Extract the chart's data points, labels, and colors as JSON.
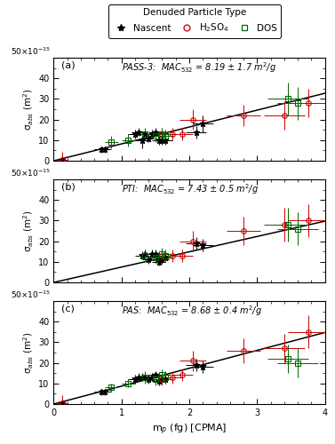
{
  "titles": [
    "PASS-3:  MAC$_{532}$ = 8.19 ± 1.7 m$^2$/g",
    "PTI:  MAC$_{532}$ = 7.43 ± 0.5 m$^2$/g",
    "PAS:  MAC$_{532}$ = 8.68 ± 0.4 m$^2$/g"
  ],
  "panel_labels": [
    "(a)",
    "(b)",
    "(c)"
  ],
  "xlabel": "m$_p$ (fg) [CPMA]",
  "ylabel": "σ$_{abs}$ (m$^2$)",
  "xlim": [
    0,
    4
  ],
  "ylim": [
    0,
    50
  ],
  "yticks": [
    0,
    10,
    20,
    30,
    40
  ],
  "xticks": [
    0,
    1,
    2,
    3,
    4
  ],
  "mac_vals": [
    8.19,
    7.43,
    8.68
  ],
  "nascent_color": "#000000",
  "h2so4_color": "#cc0000",
  "dos_color": "#006600",
  "panels": [
    {
      "nascent_x": [
        0.13,
        0.7,
        0.75,
        1.2,
        1.25,
        1.3,
        1.35,
        1.4,
        1.45,
        1.5,
        1.55,
        1.6,
        1.65,
        2.1,
        2.2
      ],
      "nascent_y": [
        0.5,
        5.5,
        5.5,
        13.0,
        14.0,
        10.0,
        13.0,
        11.0,
        13.0,
        14.0,
        10.0,
        10.0,
        10.0,
        14.0,
        18.0
      ],
      "nascent_xerr": [
        0.05,
        0.1,
        0.1,
        0.1,
        0.1,
        0.1,
        0.1,
        0.1,
        0.1,
        0.1,
        0.1,
        0.1,
        0.1,
        0.15,
        0.15
      ],
      "nascent_yerr": [
        3.0,
        1.5,
        1.5,
        2.0,
        2.0,
        4.0,
        2.0,
        2.0,
        2.0,
        2.0,
        2.0,
        2.0,
        2.0,
        3.0,
        4.0
      ],
      "h2so4_x": [
        0.13,
        1.6,
        1.75,
        1.9,
        2.05,
        2.8,
        3.4,
        3.75
      ],
      "h2so4_y": [
        0.5,
        13.0,
        13.0,
        13.0,
        20.0,
        22.0,
        22.0,
        28.0
      ],
      "h2so4_xerr": [
        0.07,
        0.15,
        0.15,
        0.15,
        0.2,
        0.25,
        0.3,
        0.3
      ],
      "h2so4_yerr": [
        4.0,
        3.0,
        3.0,
        3.0,
        5.0,
        5.0,
        7.0,
        7.0
      ],
      "dos_x": [
        0.85,
        1.1,
        1.35,
        1.5,
        1.6,
        1.65,
        3.45,
        3.6
      ],
      "dos_y": [
        9.0,
        10.0,
        13.0,
        12.0,
        13.0,
        12.0,
        30.0,
        28.0
      ],
      "dos_xerr": [
        0.1,
        0.1,
        0.1,
        0.12,
        0.12,
        0.12,
        0.3,
        0.3
      ],
      "dos_yerr": [
        3.0,
        3.0,
        3.0,
        3.0,
        3.0,
        3.0,
        8.0,
        8.0
      ]
    },
    {
      "nascent_x": [
        1.3,
        1.35,
        1.4,
        1.45,
        1.5,
        1.55,
        1.6,
        1.65,
        2.1,
        2.2
      ],
      "nascent_y": [
        13.0,
        14.0,
        11.0,
        14.0,
        14.0,
        10.0,
        11.0,
        12.0,
        19.0,
        18.0
      ],
      "nascent_xerr": [
        0.1,
        0.1,
        0.1,
        0.1,
        0.1,
        0.1,
        0.1,
        0.1,
        0.15,
        0.15
      ],
      "nascent_yerr": [
        2.0,
        2.0,
        2.0,
        2.0,
        2.0,
        2.0,
        2.0,
        2.0,
        3.0,
        3.0
      ],
      "h2so4_x": [
        1.6,
        1.75,
        1.9,
        2.05,
        2.8,
        3.4,
        3.75
      ],
      "h2so4_y": [
        13.0,
        13.0,
        13.0,
        20.0,
        25.0,
        28.0,
        30.0
      ],
      "h2so4_xerr": [
        0.15,
        0.15,
        0.15,
        0.2,
        0.25,
        0.3,
        0.3
      ],
      "h2so4_yerr": [
        3.0,
        3.0,
        3.0,
        5.0,
        7.0,
        8.0,
        8.0
      ],
      "dos_x": [
        1.35,
        1.5,
        1.6,
        1.65,
        3.45,
        3.6
      ],
      "dos_y": [
        13.0,
        12.0,
        14.0,
        13.0,
        28.0,
        26.0
      ],
      "dos_xerr": [
        0.1,
        0.12,
        0.12,
        0.12,
        0.3,
        0.3
      ],
      "dos_yerr": [
        3.0,
        3.0,
        3.0,
        3.0,
        8.0,
        8.0
      ]
    },
    {
      "nascent_x": [
        0.13,
        0.7,
        0.75,
        1.2,
        1.25,
        1.3,
        1.35,
        1.4,
        1.45,
        1.5,
        1.55,
        1.6,
        1.65,
        2.1,
        2.2
      ],
      "nascent_y": [
        0.5,
        6.0,
        6.0,
        12.0,
        13.0,
        13.0,
        13.0,
        12.0,
        13.0,
        14.0,
        11.0,
        12.0,
        12.0,
        19.0,
        18.0
      ],
      "nascent_xerr": [
        0.05,
        0.1,
        0.1,
        0.1,
        0.1,
        0.1,
        0.1,
        0.1,
        0.1,
        0.1,
        0.1,
        0.1,
        0.1,
        0.15,
        0.15
      ],
      "nascent_yerr": [
        1.0,
        1.5,
        1.5,
        2.0,
        2.0,
        2.0,
        2.0,
        2.0,
        2.0,
        2.0,
        2.0,
        2.0,
        2.0,
        3.0,
        3.0
      ],
      "h2so4_x": [
        0.13,
        1.6,
        1.75,
        1.9,
        2.05,
        2.8,
        3.4,
        3.75
      ],
      "h2so4_y": [
        0.5,
        12.0,
        13.0,
        14.0,
        21.0,
        26.0,
        27.0,
        35.0
      ],
      "h2so4_xerr": [
        0.07,
        0.15,
        0.15,
        0.15,
        0.2,
        0.25,
        0.3,
        0.3
      ],
      "h2so4_yerr": [
        4.0,
        3.0,
        3.0,
        3.0,
        5.0,
        6.0,
        7.0,
        8.0
      ],
      "dos_x": [
        0.85,
        1.1,
        1.35,
        1.5,
        1.6,
        1.65,
        3.45,
        3.6
      ],
      "dos_y": [
        8.0,
        10.0,
        13.0,
        12.0,
        14.0,
        13.0,
        22.0,
        20.0
      ],
      "dos_xerr": [
        0.1,
        0.1,
        0.1,
        0.12,
        0.12,
        0.12,
        0.3,
        0.3
      ],
      "dos_yerr": [
        2.0,
        2.0,
        3.0,
        3.0,
        3.0,
        3.0,
        7.0,
        7.0
      ]
    }
  ],
  "legend_title": "Denuded Particle Type",
  "background_color": "white"
}
